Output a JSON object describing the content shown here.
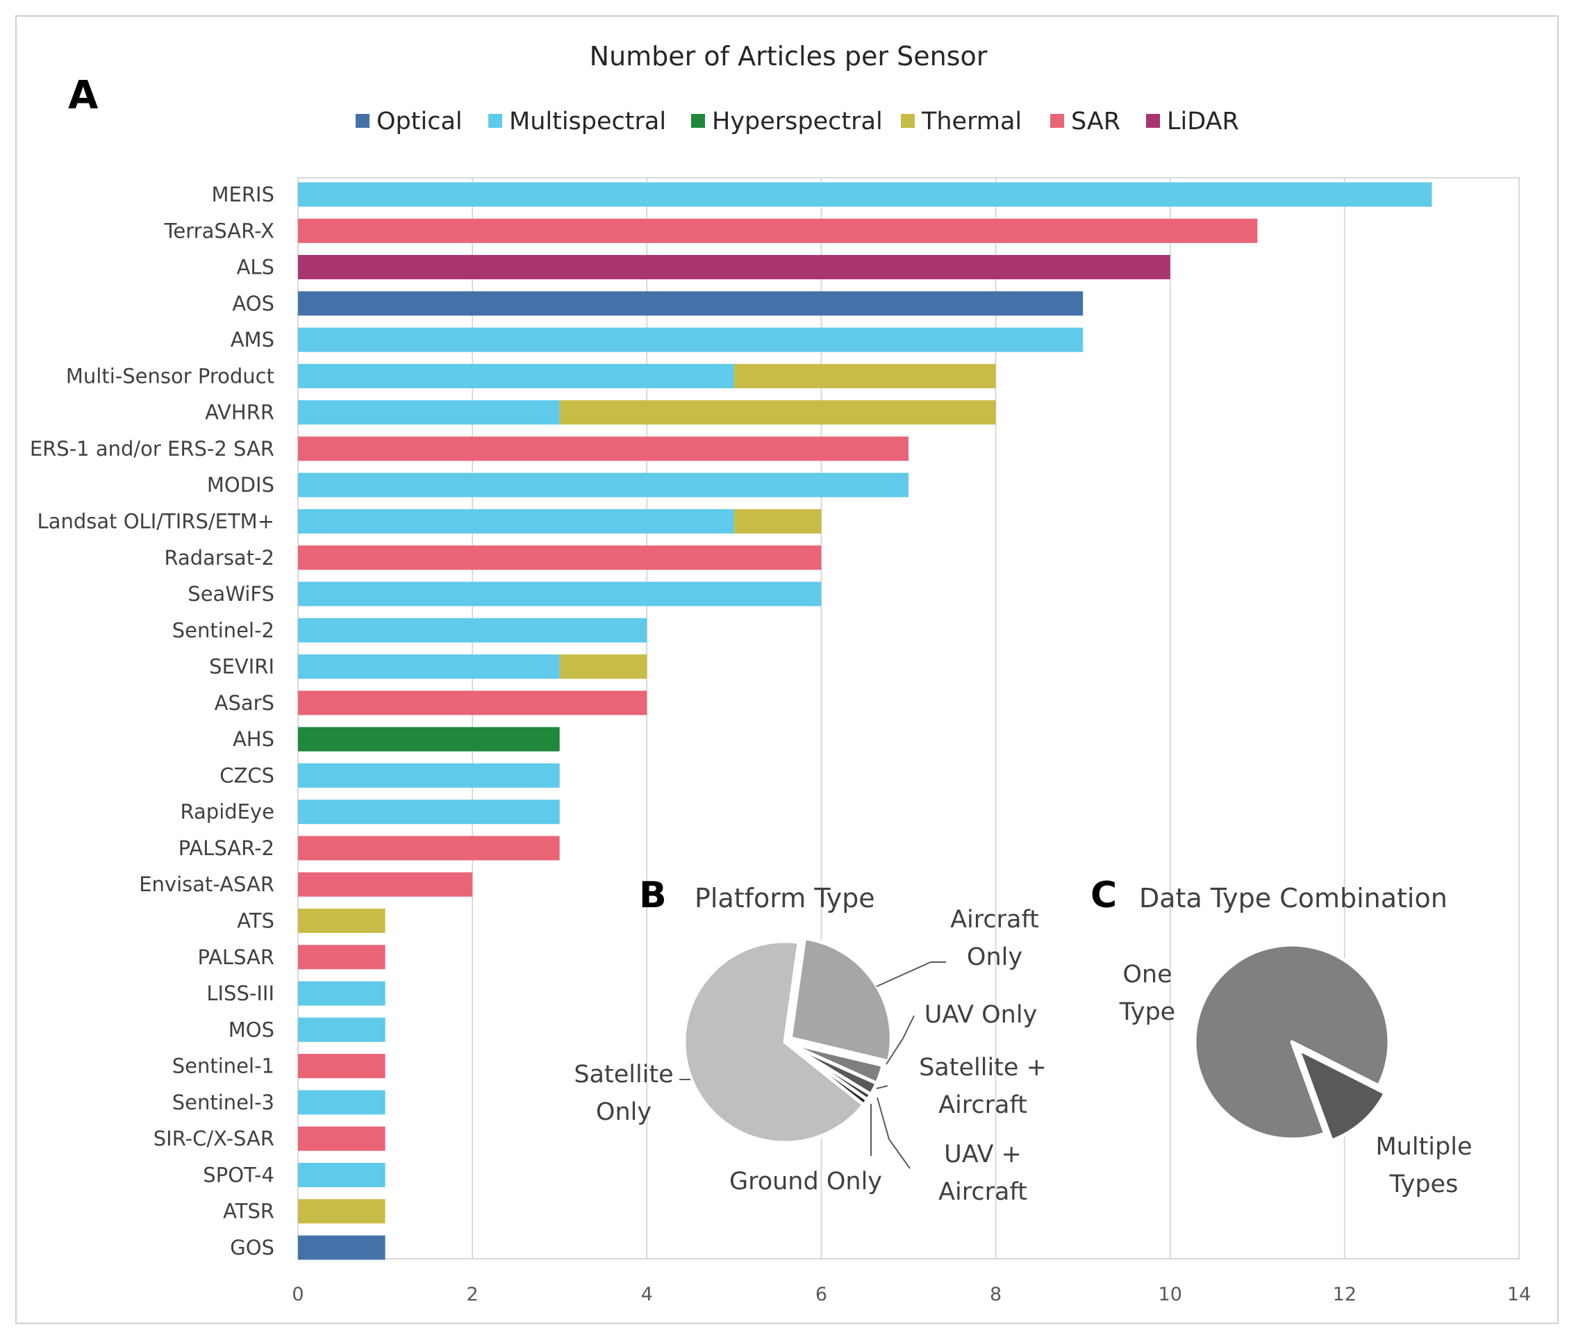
{
  "chart_data": [
    {
      "panel": "A",
      "type": "bar",
      "orientation": "horizontal",
      "stacked": true,
      "title": "Number of Articles per Sensor",
      "xlabel": "",
      "ylabel": "",
      "xlim": [
        0,
        14
      ],
      "xticks": [
        0,
        2,
        4,
        6,
        8,
        10,
        12,
        14
      ],
      "grid": true,
      "legend_position": "top",
      "legend": [
        {
          "name": "Optical",
          "color": "#4472a8"
        },
        {
          "name": "Multispectral",
          "color": "#5fcaea"
        },
        {
          "name": "Hyperspectral",
          "color": "#20883a"
        },
        {
          "name": "Thermal",
          "color": "#c8bc48"
        },
        {
          "name": "SAR",
          "color": "#ea6478"
        },
        {
          "name": "LiDAR",
          "color": "#a83570"
        }
      ],
      "categories": [
        "MERIS",
        "TerraSAR-X",
        "ALS",
        "AOS",
        "AMS",
        "Multi-Sensor Product",
        "AVHRR",
        "ERS-1 and/or ERS-2 SAR",
        "MODIS",
        "Landsat OLI/TIRS/ETM+",
        "Radarsat-2",
        "SeaWiFS",
        "Sentinel-2",
        "SEVIRI",
        "ASarS",
        "AHS",
        "CZCS",
        "RapidEye",
        "PALSAR-2",
        "Envisat-ASAR",
        "ATS",
        "PALSAR",
        "LISS-III",
        "MOS",
        "Sentinel-1",
        "Sentinel-3",
        "SIR-C/X-SAR",
        "SPOT-4",
        "ATSR",
        "GOS"
      ],
      "series": [
        {
          "name": "Optical",
          "values": [
            0,
            0,
            0,
            9,
            0,
            0,
            0,
            0,
            0,
            0,
            0,
            0,
            0,
            0,
            0,
            0,
            0,
            0,
            0,
            0,
            0,
            0,
            0,
            0,
            0,
            0,
            0,
            0,
            0,
            1
          ]
        },
        {
          "name": "Multispectral",
          "values": [
            13,
            0,
            0,
            0,
            9,
            5,
            3,
            0,
            7,
            5,
            0,
            6,
            4,
            3,
            0,
            0,
            3,
            3,
            0,
            0,
            0,
            0,
            1,
            1,
            0,
            1,
            0,
            1,
            0,
            0
          ]
        },
        {
          "name": "Hyperspectral",
          "values": [
            0,
            0,
            0,
            0,
            0,
            0,
            0,
            0,
            0,
            0,
            0,
            0,
            0,
            0,
            0,
            3,
            0,
            0,
            0,
            0,
            0,
            0,
            0,
            0,
            0,
            0,
            0,
            0,
            0,
            0
          ]
        },
        {
          "name": "Thermal",
          "values": [
            0,
            0,
            0,
            0,
            0,
            3,
            5,
            0,
            0,
            1,
            0,
            0,
            0,
            1,
            0,
            0,
            0,
            0,
            0,
            0,
            1,
            0,
            0,
            0,
            0,
            0,
            0,
            0,
            1,
            0
          ]
        },
        {
          "name": "SAR",
          "values": [
            0,
            11,
            0,
            0,
            0,
            0,
            0,
            7,
            0,
            0,
            6,
            0,
            0,
            0,
            4,
            0,
            0,
            0,
            3,
            2,
            0,
            1,
            0,
            0,
            1,
            0,
            1,
            0,
            0,
            0
          ]
        },
        {
          "name": "LiDAR",
          "values": [
            0,
            0,
            10,
            0,
            0,
            0,
            0,
            0,
            0,
            0,
            0,
            0,
            0,
            0,
            0,
            0,
            0,
            0,
            0,
            0,
            0,
            0,
            0,
            0,
            0,
            0,
            0,
            0,
            0,
            0
          ]
        }
      ]
    },
    {
      "panel": "B",
      "type": "pie",
      "title": "Platform Type",
      "slices": [
        {
          "label": "Aircraft Only",
          "label_lines": [
            "Aircraft",
            "Only"
          ],
          "value": 26.5,
          "color": "#a6a6a6",
          "exploded": true
        },
        {
          "label": "UAV Only",
          "label_lines": [
            "UAV Only"
          ],
          "value": 3.0,
          "color": "#7f7f7f"
        },
        {
          "label": "Satellite + Aircraft",
          "label_lines": [
            "Satellite +",
            "Aircraft"
          ],
          "value": 2.0,
          "color": "#595959"
        },
        {
          "label": "UAV + Aircraft",
          "label_lines": [
            "UAV +",
            "Aircraft"
          ],
          "value": 1.0,
          "color": "#404040"
        },
        {
          "label": "Ground Only",
          "label_lines": [
            "Ground Only"
          ],
          "value": 1.0,
          "color": "#262626"
        },
        {
          "label": "Satellite Only",
          "label_lines": [
            "Satellite",
            "Only"
          ],
          "value": 66.5,
          "color": "#bfbfbf"
        }
      ]
    },
    {
      "panel": "C",
      "type": "pie",
      "title": "Data Type Combination",
      "slices": [
        {
          "label": "One Type",
          "label_lines": [
            "One",
            "Type"
          ],
          "value": 88,
          "color": "#808080"
        },
        {
          "label": "Multiple Types",
          "label_lines": [
            "Multiple",
            "Types"
          ],
          "value": 12,
          "color": "#595959",
          "exploded": true
        }
      ]
    }
  ]
}
